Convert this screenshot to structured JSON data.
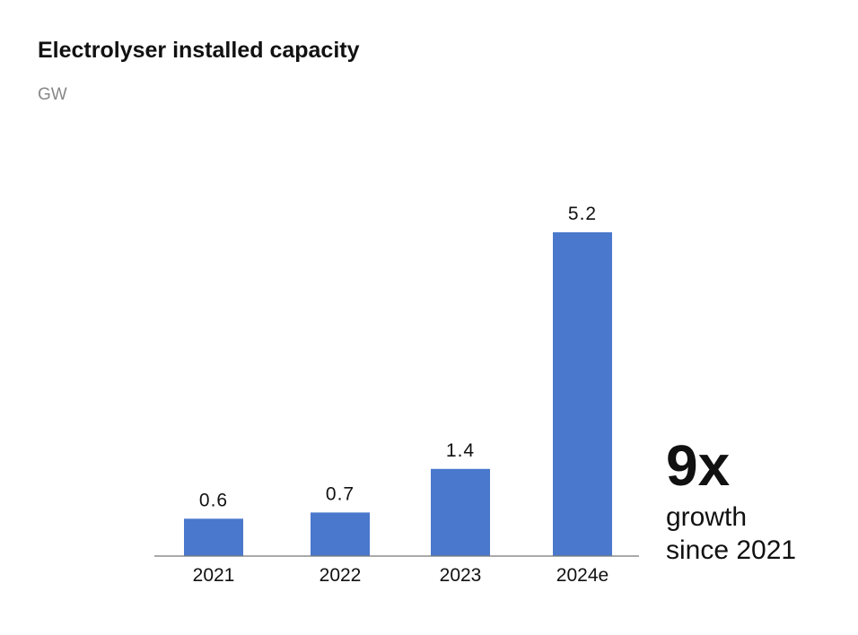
{
  "chart_data": {
    "type": "bar",
    "title": "Electrolyser installed capacity",
    "ylabel": "GW",
    "xlabel": "",
    "categories": [
      "2021",
      "2022",
      "2023",
      "2024e"
    ],
    "values": [
      0.6,
      0.7,
      1.4,
      5.2
    ],
    "data_labels": [
      "0.6",
      "0.7",
      "1.4",
      "5.2"
    ],
    "ylim": [
      0,
      5.2
    ],
    "grid": false,
    "bar_color": "#4a78cc",
    "annotation": {
      "headline": "9x",
      "line1": "growth",
      "line2": "since 2021"
    }
  }
}
